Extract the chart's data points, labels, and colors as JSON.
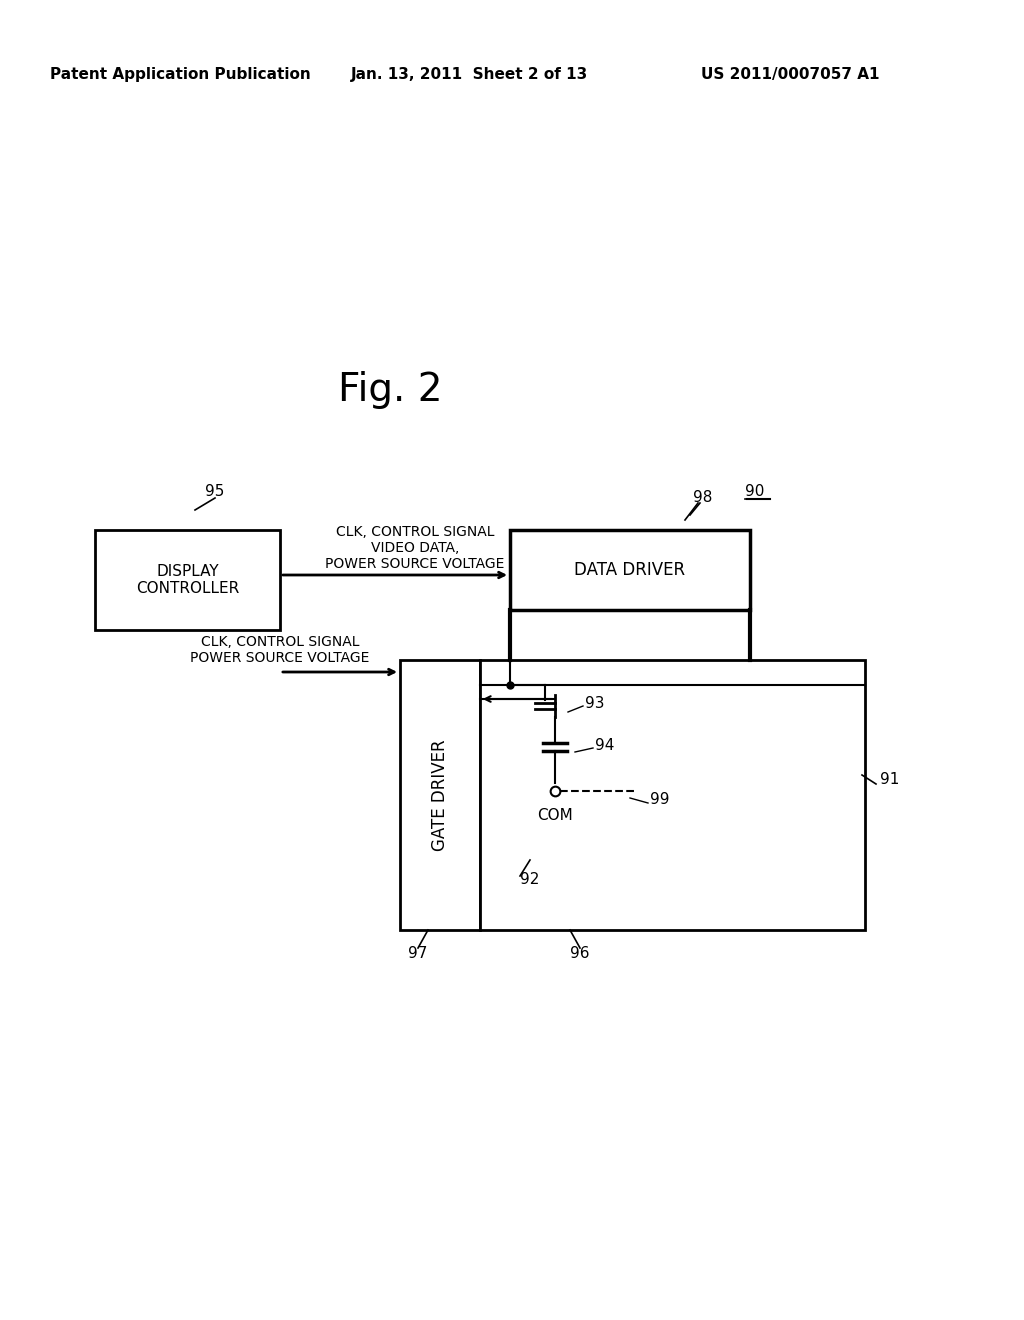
{
  "bg_color": "#ffffff",
  "header_left": "Patent Application Publication",
  "header_mid": "Jan. 13, 2011  Sheet 2 of 13",
  "header_right": "US 2011/0007057 A1",
  "fig_label": "Fig. 2",
  "display_controller_label": "DISPLAY\nCONTROLLER",
  "data_driver_label": "DATA DRIVER",
  "gate_driver_label": "GATE DRIVER",
  "arrow1_label": "CLK, CONTROL SIGNAL\nVIDEO DATA,\nPOWER SOURCE VOLTAGE",
  "arrow2_label": "CLK, CONTROL SIGNAL\nPOWER SOURCE VOLTAGE",
  "label_95": "95",
  "label_90": "90",
  "label_91": "91",
  "label_92": "92",
  "label_93": "93",
  "label_94": "94",
  "label_96": "96",
  "label_97": "97",
  "label_98": "98",
  "label_99": "99",
  "label_com": "COM"
}
